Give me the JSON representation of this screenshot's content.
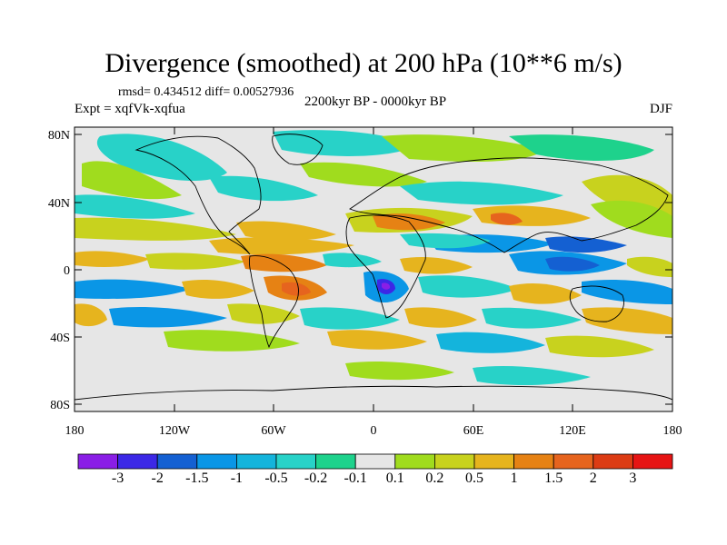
{
  "title": "Divergence (smoothed) at 200 hPa (10**6 m/s)",
  "stats": "rmsd= 0.434512 diff= 0.00527936",
  "experiment": "Expt = xqfVk-xqfua",
  "period": "2200kyr BP - 0000kyr BP",
  "season": "DJF",
  "lat_labels": [
    "80N",
    "40N",
    "0",
    "40S",
    "80S"
  ],
  "lon_labels": [
    "180",
    "120W",
    "60W",
    "0",
    "60E",
    "120E",
    "180"
  ],
  "colorbar": {
    "labels": [
      "-3",
      "-2",
      "-1.5",
      "-1",
      "-0.5",
      "-0.2",
      "-0.1",
      "0.1",
      "0.2",
      "0.5",
      "1",
      "1.5",
      "2",
      "3"
    ],
    "colors": [
      "#8a1ee6",
      "#3c28e6",
      "#1460d2",
      "#0a96e6",
      "#14b4dc",
      "#28d2c8",
      "#1ed28c",
      "#e6e6e6",
      "#a0dc1e",
      "#c8d21e",
      "#e6b41e",
      "#e68214",
      "#e6641e",
      "#dc3c14",
      "#e61414"
    ]
  }
}
